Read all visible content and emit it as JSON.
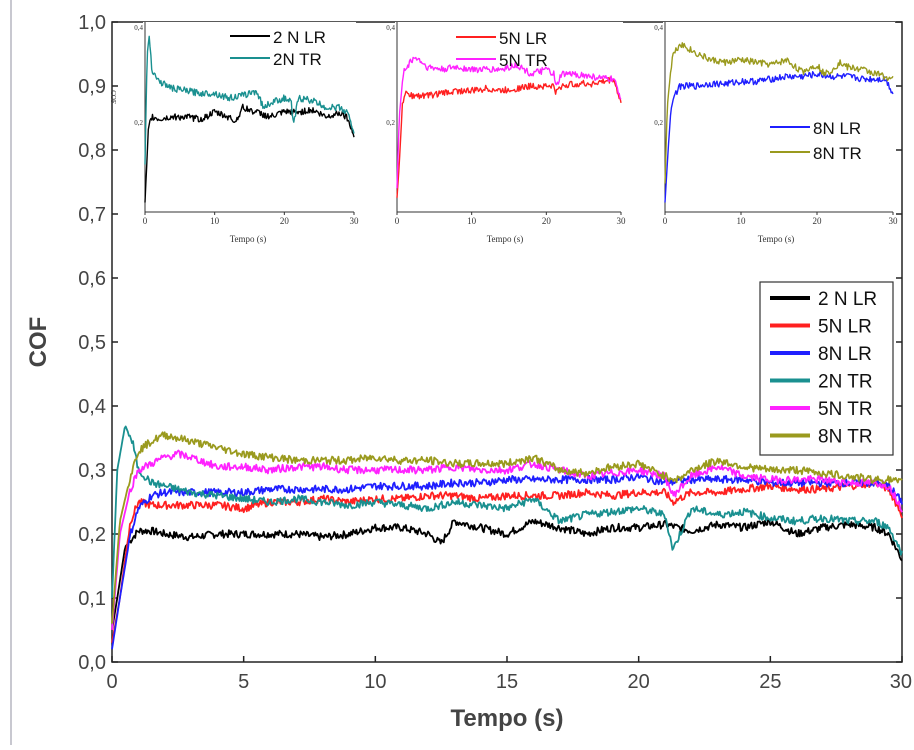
{
  "chart_data": [
    {
      "type": "line",
      "title": "",
      "xlabel": "Tempo (s)",
      "ylabel": "COF",
      "xlim": [
        0,
        30
      ],
      "ylim": [
        0.0,
        1.0
      ],
      "xticks": [
        0,
        5,
        10,
        15,
        20,
        25,
        30
      ],
      "xtick_labels": [
        "0",
        "5",
        "10",
        "15",
        "20",
        "25",
        "30"
      ],
      "yticks": [
        0.0,
        0.1,
        0.2,
        0.3,
        0.4,
        0.5,
        0.6,
        0.7,
        0.8,
        0.9,
        1.0
      ],
      "ytick_labels": [
        "0,0",
        "0,1",
        "0,2",
        "0,3",
        "0,4",
        "0,5",
        "0,6",
        "0,7",
        "0,8",
        "0,9",
        "1,0"
      ],
      "grid": false,
      "legend": "right",
      "series": [
        {
          "name": "2 N LR",
          "color": "#000000",
          "x": [
            0,
            0.2,
            0.5,
            1,
            1.5,
            2,
            3,
            4,
            5,
            6,
            7,
            8,
            9,
            10,
            11,
            12,
            12.5,
            13,
            14,
            15,
            16,
            17,
            18,
            19,
            20,
            21,
            22,
            23,
            24,
            25,
            26,
            27,
            28,
            29,
            29.5,
            30
          ],
          "y": [
            0.05,
            0.1,
            0.18,
            0.205,
            0.205,
            0.2,
            0.195,
            0.2,
            0.2,
            0.2,
            0.2,
            0.195,
            0.2,
            0.21,
            0.21,
            0.2,
            0.185,
            0.22,
            0.21,
            0.2,
            0.22,
            0.21,
            0.2,
            0.21,
            0.21,
            0.215,
            0.205,
            0.215,
            0.21,
            0.22,
            0.2,
            0.21,
            0.215,
            0.21,
            0.2,
            0.16
          ]
        },
        {
          "name": "5N LR",
          "color": "#ff2020",
          "x": [
            0,
            0.3,
            0.7,
            1,
            1.5,
            2,
            3,
            4,
            5,
            6,
            7,
            8,
            9,
            10,
            11,
            12,
            13,
            14,
            15,
            16,
            17,
            18,
            19,
            20,
            21,
            21.3,
            22,
            23,
            24,
            25,
            26,
            27,
            28,
            29,
            29.5,
            30
          ],
          "y": [
            0.03,
            0.1,
            0.22,
            0.25,
            0.245,
            0.245,
            0.245,
            0.245,
            0.24,
            0.25,
            0.25,
            0.255,
            0.25,
            0.255,
            0.255,
            0.26,
            0.26,
            0.255,
            0.26,
            0.26,
            0.26,
            0.265,
            0.26,
            0.265,
            0.265,
            0.25,
            0.265,
            0.265,
            0.27,
            0.275,
            0.27,
            0.27,
            0.275,
            0.28,
            0.27,
            0.23
          ]
        },
        {
          "name": "8N LR",
          "color": "#1f1fff",
          "x": [
            0,
            0.3,
            0.7,
            1,
            1.5,
            2,
            3,
            4,
            5,
            6,
            7,
            8,
            9,
            10,
            11,
            12,
            13,
            14,
            15,
            16,
            17,
            18,
            19,
            20,
            21,
            22,
            23,
            24,
            25,
            26,
            27,
            28,
            29,
            29.5,
            30
          ],
          "y": [
            0.02,
            0.1,
            0.2,
            0.24,
            0.26,
            0.265,
            0.265,
            0.265,
            0.265,
            0.27,
            0.27,
            0.27,
            0.27,
            0.275,
            0.275,
            0.275,
            0.28,
            0.28,
            0.285,
            0.285,
            0.285,
            0.285,
            0.285,
            0.29,
            0.28,
            0.285,
            0.285,
            0.285,
            0.28,
            0.28,
            0.28,
            0.28,
            0.28,
            0.275,
            0.25
          ]
        },
        {
          "name": "2N TR",
          "color": "#1a9090",
          "x": [
            0,
            0.2,
            0.5,
            0.8,
            1,
            1.5,
            2,
            3,
            4,
            5,
            6,
            7,
            8,
            9,
            10,
            11,
            12,
            13,
            14,
            15,
            16,
            17,
            18,
            19,
            20,
            21,
            21.3,
            22,
            23,
            24,
            25,
            26,
            27,
            28,
            29,
            29.5,
            30
          ],
          "y": [
            0.1,
            0.3,
            0.37,
            0.34,
            0.3,
            0.28,
            0.275,
            0.265,
            0.26,
            0.255,
            0.25,
            0.255,
            0.25,
            0.245,
            0.25,
            0.245,
            0.24,
            0.25,
            0.245,
            0.24,
            0.255,
            0.22,
            0.23,
            0.235,
            0.24,
            0.23,
            0.175,
            0.24,
            0.23,
            0.235,
            0.225,
            0.22,
            0.225,
            0.22,
            0.22,
            0.21,
            0.17
          ]
        },
        {
          "name": "5N TR",
          "color": "#ff22ff",
          "x": [
            0,
            0.3,
            0.7,
            1,
            1.5,
            2,
            2.5,
            3,
            4,
            5,
            6,
            7,
            8,
            9,
            10,
            11,
            12,
            13,
            14,
            15,
            16,
            17,
            18,
            19,
            20,
            21,
            21.3,
            22,
            23,
            24,
            25,
            26,
            27,
            28,
            29,
            29.5,
            30
          ],
          "y": [
            0.05,
            0.2,
            0.27,
            0.3,
            0.31,
            0.32,
            0.325,
            0.32,
            0.305,
            0.305,
            0.3,
            0.305,
            0.305,
            0.3,
            0.3,
            0.3,
            0.3,
            0.305,
            0.3,
            0.3,
            0.31,
            0.3,
            0.29,
            0.295,
            0.3,
            0.29,
            0.26,
            0.29,
            0.305,
            0.29,
            0.285,
            0.285,
            0.285,
            0.28,
            0.28,
            0.275,
            0.24
          ]
        },
        {
          "name": "8N TR",
          "color": "#9a9a1e",
          "x": [
            0,
            0.3,
            0.7,
            1,
            1.5,
            2,
            2.5,
            3,
            4,
            5,
            6,
            7,
            8,
            9,
            10,
            11,
            12,
            13,
            14,
            15,
            16,
            17,
            18,
            19,
            20,
            21,
            21.5,
            22,
            23,
            24,
            25,
            26,
            27,
            28,
            29,
            29.5,
            30
          ],
          "y": [
            0.06,
            0.22,
            0.29,
            0.33,
            0.345,
            0.355,
            0.35,
            0.345,
            0.335,
            0.325,
            0.32,
            0.315,
            0.315,
            0.315,
            0.32,
            0.315,
            0.315,
            0.31,
            0.31,
            0.31,
            0.32,
            0.3,
            0.295,
            0.305,
            0.31,
            0.29,
            0.285,
            0.3,
            0.315,
            0.305,
            0.3,
            0.3,
            0.295,
            0.29,
            0.285,
            0.285,
            0.28
          ]
        }
      ]
    },
    {
      "type": "line",
      "title": "",
      "xlabel": "Tempo (s)",
      "ylabel": "COF",
      "xlim": [
        0,
        30
      ],
      "ylim": [
        0.0,
        0.4
      ],
      "xtick_labels": [
        "0",
        "10",
        "20",
        "30"
      ],
      "ytick_labels": [
        "0,4",
        "0,2"
      ],
      "legend": "top",
      "series": [
        {
          "name": "2 N LR",
          "color": "#000000",
          "x": [
            0,
            0.5,
            1,
            2,
            4,
            6,
            8,
            10,
            12,
            13,
            14,
            16,
            18,
            20,
            22,
            24,
            26,
            28,
            29,
            30
          ],
          "y": [
            0.02,
            0.18,
            0.2,
            0.195,
            0.2,
            0.2,
            0.195,
            0.21,
            0.2,
            0.19,
            0.22,
            0.21,
            0.2,
            0.21,
            0.21,
            0.215,
            0.2,
            0.21,
            0.2,
            0.16
          ]
        },
        {
          "name": "2N TR",
          "color": "#1a9090",
          "x": [
            0,
            0.3,
            0.6,
            1,
            2,
            4,
            6,
            8,
            10,
            12,
            14,
            16,
            17,
            18,
            20,
            21,
            21.3,
            22,
            24,
            26,
            28,
            29,
            30
          ],
          "y": [
            0.1,
            0.33,
            0.37,
            0.3,
            0.275,
            0.26,
            0.255,
            0.25,
            0.25,
            0.24,
            0.245,
            0.255,
            0.22,
            0.23,
            0.24,
            0.23,
            0.18,
            0.24,
            0.235,
            0.22,
            0.22,
            0.21,
            0.17
          ]
        }
      ]
    },
    {
      "type": "line",
      "title": "",
      "xlabel": "Tempo (s)",
      "ylabel": "",
      "xlim": [
        0,
        30
      ],
      "ylim": [
        0.0,
        0.4
      ],
      "xtick_labels": [
        "0",
        "10",
        "20",
        "30"
      ],
      "ytick_labels": [
        "0,4",
        "0,2"
      ],
      "legend": "top",
      "series": [
        {
          "name": "5N LR",
          "color": "#ff2020",
          "x": [
            0,
            0.3,
            0.7,
            1,
            2,
            4,
            6,
            8,
            10,
            12,
            14,
            16,
            18,
            20,
            21,
            21.3,
            22,
            24,
            26,
            28,
            29,
            30
          ],
          "y": [
            0.03,
            0.1,
            0.22,
            0.25,
            0.245,
            0.245,
            0.25,
            0.255,
            0.255,
            0.26,
            0.255,
            0.26,
            0.265,
            0.265,
            0.265,
            0.25,
            0.265,
            0.27,
            0.27,
            0.275,
            0.28,
            0.23
          ]
        },
        {
          "name": "5N TR",
          "color": "#ff22ff",
          "x": [
            0,
            0.3,
            0.7,
            1,
            2,
            2.5,
            3,
            4,
            6,
            8,
            10,
            12,
            14,
            16,
            18,
            20,
            21,
            21.3,
            22,
            24,
            26,
            28,
            29,
            30
          ],
          "y": [
            0.05,
            0.2,
            0.27,
            0.3,
            0.32,
            0.325,
            0.32,
            0.305,
            0.3,
            0.305,
            0.3,
            0.3,
            0.3,
            0.31,
            0.29,
            0.3,
            0.29,
            0.26,
            0.29,
            0.29,
            0.285,
            0.28,
            0.28,
            0.24
          ]
        }
      ]
    },
    {
      "type": "line",
      "title": "",
      "xlabel": "Tempo (s)",
      "ylabel": "",
      "xlim": [
        0,
        30
      ],
      "ylim": [
        0.0,
        0.4
      ],
      "xtick_labels": [
        "0",
        "10",
        "20",
        "30"
      ],
      "ytick_labels": [
        "0,4",
        "0,2"
      ],
      "legend": "right",
      "series": [
        {
          "name": "8N LR",
          "color": "#1f1fff",
          "x": [
            0,
            0.3,
            0.7,
            1,
            2,
            4,
            6,
            8,
            10,
            12,
            14,
            16,
            18,
            20,
            22,
            24,
            26,
            28,
            29,
            30
          ],
          "y": [
            0.02,
            0.1,
            0.2,
            0.24,
            0.265,
            0.265,
            0.27,
            0.27,
            0.275,
            0.275,
            0.28,
            0.285,
            0.285,
            0.29,
            0.285,
            0.285,
            0.28,
            0.28,
            0.28,
            0.25
          ]
        },
        {
          "name": "8N TR",
          "color": "#9a9a1e",
          "x": [
            0,
            0.3,
            0.7,
            1,
            2,
            2.5,
            3,
            4,
            6,
            8,
            10,
            12,
            14,
            16,
            18,
            20,
            21,
            22,
            23,
            24,
            26,
            28,
            29,
            30
          ],
          "y": [
            0.06,
            0.22,
            0.29,
            0.33,
            0.355,
            0.35,
            0.345,
            0.335,
            0.32,
            0.315,
            0.32,
            0.315,
            0.31,
            0.32,
            0.295,
            0.31,
            0.29,
            0.3,
            0.315,
            0.305,
            0.3,
            0.29,
            0.285,
            0.28
          ]
        }
      ]
    }
  ]
}
